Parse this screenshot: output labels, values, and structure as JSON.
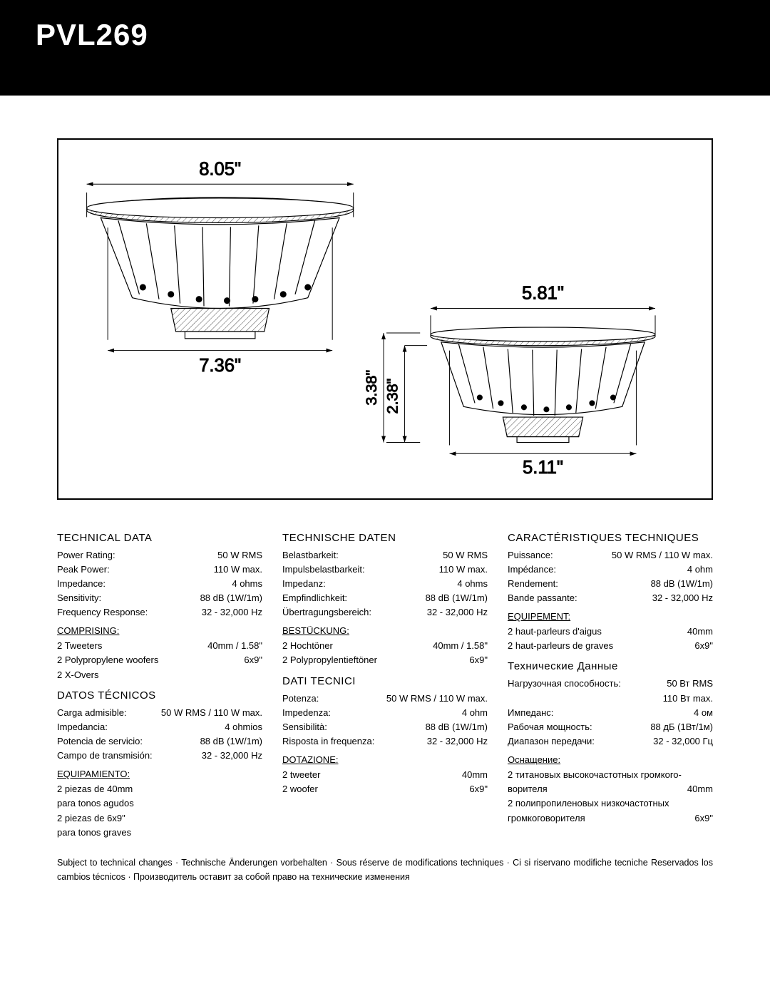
{
  "product_title": "PVL269",
  "diagram": {
    "dims": {
      "top_width": "8.05\"",
      "left_bottom_width": "7.36\"",
      "right_top_width": "5.81\"",
      "right_bottom_width": "5.11\"",
      "height_outer": "3.38\"",
      "height_inner": "2.38\""
    },
    "stroke": "#000000",
    "stroke_width": 1.2,
    "hatch_spacing": 6,
    "box_border_color": "#000000",
    "box_border_width": 2,
    "background": "#ffffff"
  },
  "sections": {
    "en": {
      "title": "TECHNICAL DATA",
      "rows": [
        [
          "Power Rating:",
          "50 W RMS"
        ],
        [
          "Peak Power:",
          "110 W max."
        ],
        [
          "Impedance:",
          "4 ohms"
        ],
        [
          "Sensitivity:",
          "88 dB (1W/1m)"
        ],
        [
          "Frequency Response:",
          "32 - 32,000 Hz"
        ]
      ],
      "sub": "COMPRISING:",
      "sub_rows": [
        [
          "2 Tweeters",
          "40mm / 1.58\""
        ],
        [
          "2 Polypropylene woofers",
          "6x9\""
        ],
        [
          "2 X-Overs",
          ""
        ]
      ]
    },
    "de": {
      "title": "TECHNISCHE DATEN",
      "rows": [
        [
          "Belastbarkeit:",
          "50 W RMS"
        ],
        [
          "Impulsbelastbarkeit:",
          "110 W max."
        ],
        [
          "Impedanz:",
          "4 ohms"
        ],
        [
          "Empfindlichkeit:",
          "88 dB (1W/1m)"
        ],
        [
          "Übertragungsbereich:",
          "32 - 32,000 Hz"
        ]
      ],
      "sub": "BESTÜCKUNG:",
      "sub_rows": [
        [
          "2 Hochtöner",
          "40mm / 1.58\""
        ],
        [
          "2 Polypropylentieftöner",
          "6x9\""
        ]
      ]
    },
    "fr": {
      "title": "CARACTÉRISTIQUES TECHNIQUES",
      "rows": [
        [
          "Puissance:",
          "50 W RMS /  110 W max."
        ],
        [
          "Impédance:",
          "4 ohm"
        ],
        [
          "Rendement:",
          "88 dB (1W/1m)"
        ],
        [
          "Bande passante:",
          "32 - 32,000 Hz"
        ]
      ],
      "sub": "EQUIPEMENT:",
      "sub_rows": [
        [
          "2 haut-parleurs d'aigus",
          "40mm"
        ],
        [
          "2 haut-parleurs de graves",
          "6x9\""
        ]
      ]
    },
    "es": {
      "title": "DATOS TÉCNICOS",
      "rows": [
        [
          "Carga admisible:",
          "50 W RMS /  110 W max."
        ],
        [
          "Impedancia:",
          "4 ohmios"
        ],
        [
          "Potencia de servicio:",
          "88 dB (1W/1m)"
        ],
        [
          "Campo de transmisión:",
          "32 - 32,000 Hz"
        ]
      ],
      "sub": "EQUIPAMIENTO:",
      "sub_rows": [
        [
          "2 piezas de 40mm",
          ""
        ],
        [
          "para tonos agudos",
          ""
        ],
        [
          "2 piezas de 6x9\"",
          ""
        ],
        [
          "para tonos graves",
          ""
        ]
      ]
    },
    "it": {
      "title": "DATI TECNICI",
      "rows": [
        [
          "Potenza:",
          "50 W RMS /  110 W max."
        ],
        [
          "Impedenza:",
          "4 ohm"
        ],
        [
          "Sensibilità:",
          "88 dB (1W/1m)"
        ],
        [
          "Risposta in frequenza:",
          "32 - 32,000 Hz"
        ]
      ],
      "sub": "DOTAZIONE:",
      "sub_rows": [
        [
          "2 tweeter",
          "40mm"
        ],
        [
          "2 woofer",
          "6x9\""
        ]
      ]
    },
    "ru": {
      "title": "Технические Данные",
      "rows": [
        [
          "Нагрузочная способность:",
          "50 Вт RMS"
        ],
        [
          "",
          "110 Вт max."
        ],
        [
          "Импеданс:",
          "4 ом"
        ],
        [
          "Рабочая мощность:",
          "88 дБ (1Вт/1м)"
        ],
        [
          "Диапазон передачи:",
          "32 - 32,000 Гц"
        ]
      ],
      "sub": "Оснащение:",
      "sub_rows": [
        [
          "2 титановых высокочастотных громкого-",
          ""
        ],
        [
          "ворителя",
          "40mm"
        ],
        [
          "2 полипропиленовых низкочастотных",
          ""
        ],
        [
          "громкоговорителя",
          "6x9\""
        ]
      ]
    }
  },
  "footer_note": "Subject to technical changes · Technische Änderungen vorbehalten · Sous réserve de modifications techniques · Ci si riservano modifiche tecniche Reservados los cambios técnicos · Производитель оставит за собой право на технические изменения"
}
